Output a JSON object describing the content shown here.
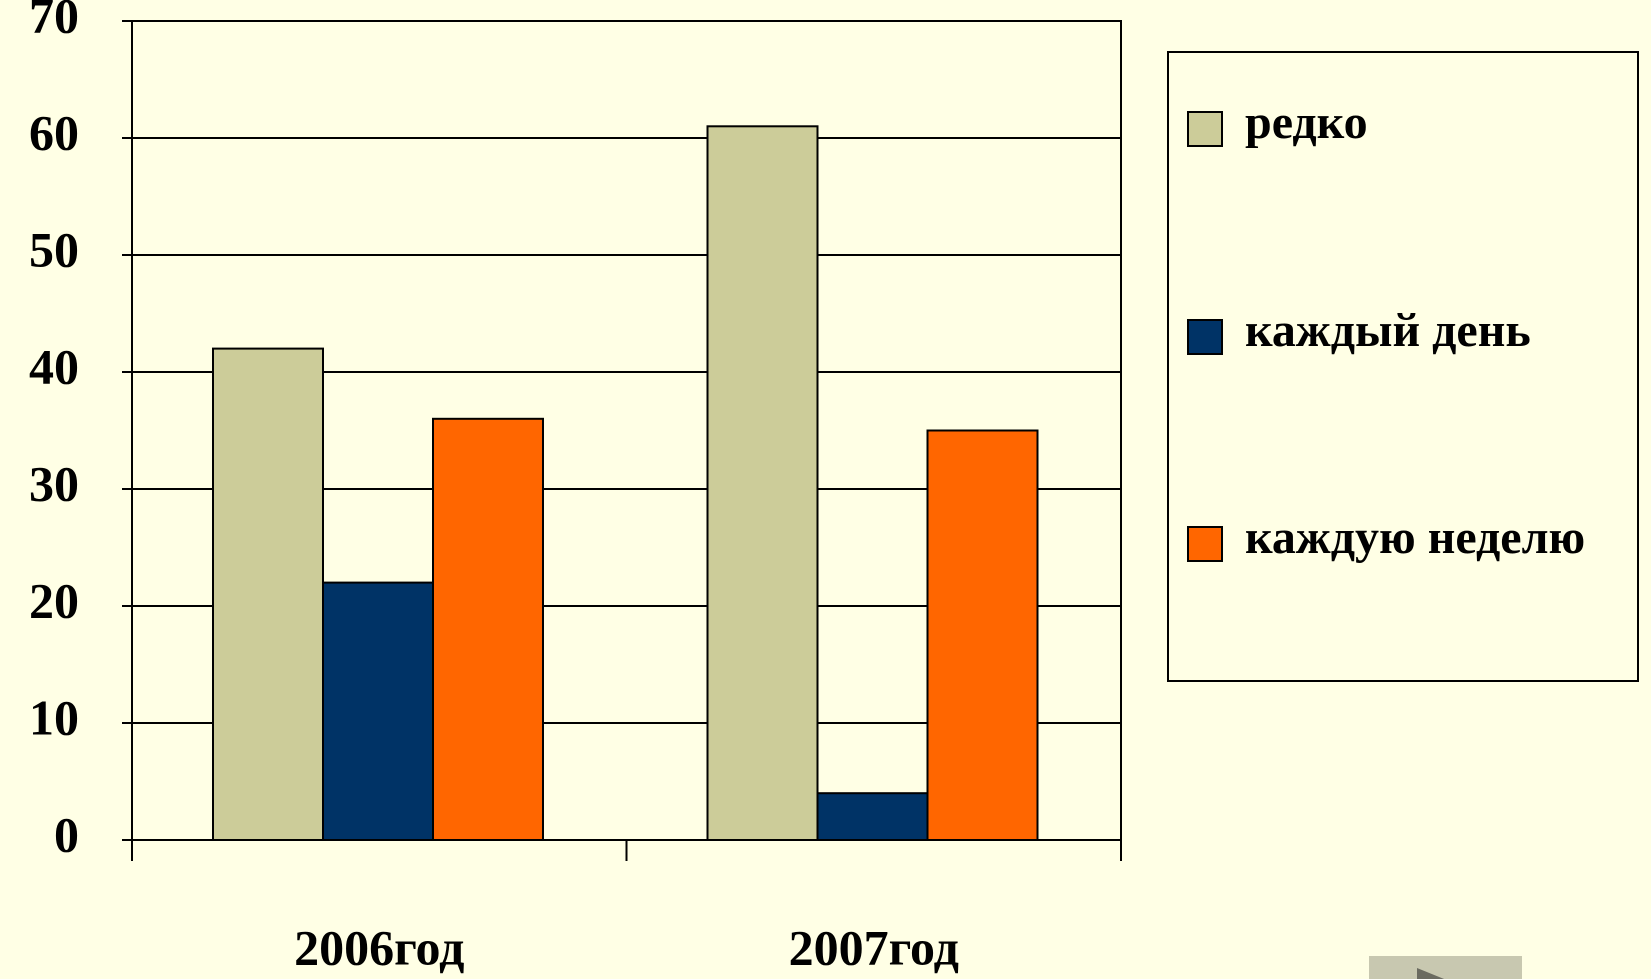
{
  "chart_data": {
    "type": "bar",
    "categories": [
      "2006год",
      "2007год"
    ],
    "series": [
      {
        "name": "редко",
        "color": "#cccc99",
        "values": [
          42,
          61
        ]
      },
      {
        "name": "каждый день",
        "color": "#003366",
        "values": [
          22,
          4
        ]
      },
      {
        "name": "каждую неделю",
        "color": "#ff6600",
        "values": [
          36,
          35
        ]
      }
    ],
    "ylim": [
      0,
      70
    ],
    "yticks": [
      0,
      10,
      20,
      30,
      40,
      50,
      60,
      70
    ],
    "grid": true,
    "legend": "right"
  }
}
